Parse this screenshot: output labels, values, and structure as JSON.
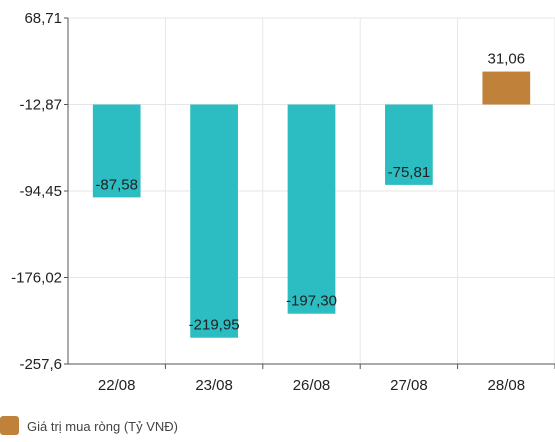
{
  "chart_data": {
    "type": "bar",
    "categories": [
      "22/08",
      "23/08",
      "26/08",
      "27/08",
      "28/08"
    ],
    "series": [
      {
        "name": "Giá trị mua ròng (Tỷ VNĐ)",
        "values": [
          -87.58,
          -219.95,
          -197.3,
          -75.81,
          31.06
        ],
        "labels": [
          "-87,58",
          "-219,95",
          "-197,30",
          "-75,81",
          "31,06"
        ]
      }
    ],
    "ylim": [
      -257.6,
      68.71
    ],
    "yticks": [
      68.71,
      -12.87,
      -94.45,
      -176.02,
      -257.6
    ],
    "ytick_labels": [
      "68,71",
      "-12,87",
      "-94,45",
      "-176,02",
      "-257,6"
    ],
    "grid": true,
    "legend_position": "bottom-left",
    "colors": {
      "negative": "#2bbdc1",
      "positive": "#c0813a",
      "legend_swatch": "#c0813a",
      "grid": "#e6e6e6",
      "axis": "#555555"
    },
    "title": "",
    "xlabel": "",
    "ylabel": ""
  }
}
